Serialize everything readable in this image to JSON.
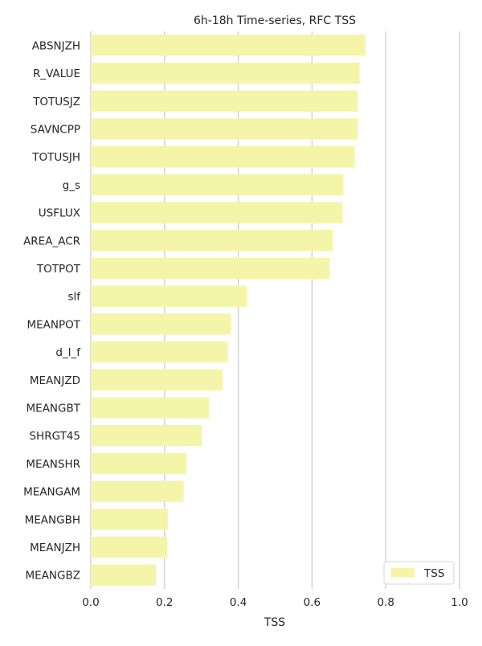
{
  "chart_data": {
    "type": "bar",
    "orientation": "horizontal",
    "title": "6h-18h Time-series, RFC TSS",
    "xlabel": "TSS",
    "ylabel": "",
    "xlim": [
      0,
      1.0
    ],
    "xticks": [
      "0.0",
      "0.2",
      "0.4",
      "0.6",
      "0.8",
      "1.0"
    ],
    "grid": "vertical",
    "legend_position": "lower-right",
    "bar_color": "#f5f5aa",
    "categories": [
      "ABSNJZH",
      "R_VALUE",
      "TOTUSJZ",
      "SAVNCPP",
      "TOTUSJH",
      "g_s",
      "USFLUX",
      "AREA_ACR",
      "TOTPOT",
      "slf",
      "MEANPOT",
      "d_l_f",
      "MEANJZD",
      "MEANGBT",
      "SHRGT45",
      "MEANSHR",
      "MEANGAM",
      "MEANGBH",
      "MEANJZH",
      "MEANGBZ"
    ],
    "series": [
      {
        "name": "TSS",
        "values": [
          0.745,
          0.729,
          0.724,
          0.724,
          0.716,
          0.685,
          0.683,
          0.657,
          0.648,
          0.424,
          0.38,
          0.372,
          0.358,
          0.321,
          0.302,
          0.26,
          0.252,
          0.209,
          0.207,
          0.177
        ]
      }
    ]
  }
}
